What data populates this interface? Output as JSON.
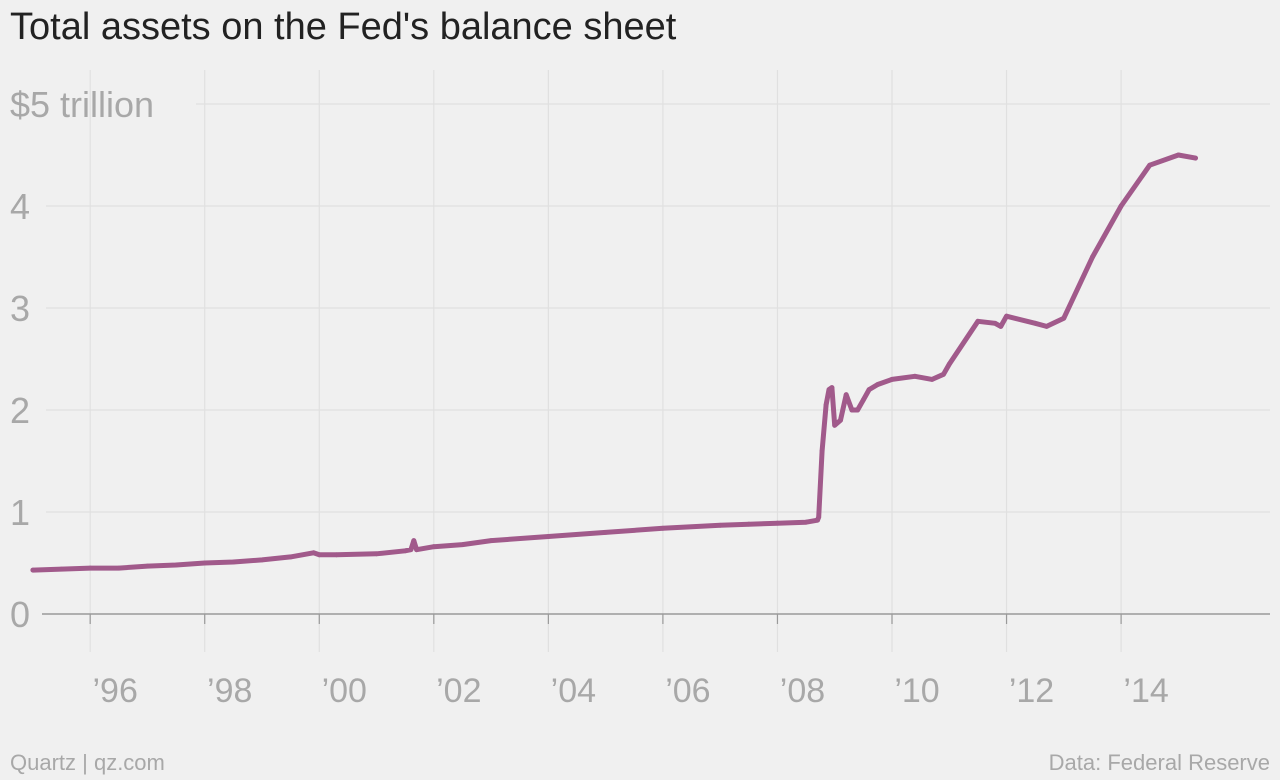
{
  "chart_data": {
    "type": "line",
    "title": "Total assets on the Fed's balance sheet",
    "xlabel": "",
    "ylabel": "",
    "x_unit": "year",
    "xlim": [
      1994.6,
      2016.6
    ],
    "ylim": [
      0,
      5
    ],
    "y_ticks": [
      0,
      1,
      2,
      3,
      4,
      5
    ],
    "y_tick_labels": [
      "0",
      "1",
      "2",
      "3",
      "4",
      "$5 trillion"
    ],
    "x_ticks": [
      1996,
      1998,
      2000,
      2002,
      2004,
      2006,
      2008,
      2010,
      2012,
      2014
    ],
    "x_tick_labels": [
      "’96",
      "’98",
      "’00",
      "’02",
      "’04",
      "’06",
      "’08",
      "’10",
      "’12",
      "’14"
    ],
    "grid": true,
    "legend": "none",
    "colors": {
      "line": "#a15a8b",
      "grid": "#e0e0e0",
      "zero_line": "#999999",
      "axis_text": "#a8a8a8",
      "title": "#222222",
      "background": "#f0f0f0"
    },
    "series": [
      {
        "x": [
          1995.0,
          1995.5,
          1996.0,
          1996.5,
          1997.0,
          1997.5,
          1998.0,
          1998.5,
          1999.0,
          1999.5,
          1999.9,
          2000.0,
          2000.3,
          2001.0,
          2001.5,
          2001.6,
          2001.65,
          2001.7,
          2002.0,
          2002.5,
          2003.0,
          2004.0,
          2005.0,
          2006.0,
          2007.0,
          2007.5,
          2008.0,
          2008.5,
          2008.7,
          2008.72,
          2008.78,
          2008.85,
          2008.9,
          2008.95,
          2009.0,
          2009.1,
          2009.2,
          2009.3,
          2009.4,
          2009.5,
          2009.6,
          2009.75,
          2010.0,
          2010.4,
          2010.7,
          2010.9,
          2011.0,
          2011.5,
          2011.8,
          2011.9,
          2012.0,
          2012.5,
          2012.7,
          2013.0,
          2013.5,
          2014.0,
          2014.5,
          2015.0,
          2015.3
        ],
        "y": [
          0.43,
          0.44,
          0.45,
          0.45,
          0.47,
          0.48,
          0.5,
          0.51,
          0.53,
          0.56,
          0.6,
          0.58,
          0.58,
          0.59,
          0.62,
          0.63,
          0.72,
          0.63,
          0.66,
          0.68,
          0.72,
          0.76,
          0.8,
          0.84,
          0.87,
          0.88,
          0.89,
          0.9,
          0.92,
          0.95,
          1.6,
          2.05,
          2.2,
          2.22,
          1.85,
          1.9,
          2.15,
          2.0,
          2.0,
          2.1,
          2.2,
          2.25,
          2.3,
          2.33,
          2.3,
          2.35,
          2.45,
          2.87,
          2.85,
          2.82,
          2.92,
          2.85,
          2.82,
          2.9,
          3.5,
          4.0,
          4.4,
          4.5,
          4.47
        ]
      }
    ]
  },
  "footer": {
    "source_left": "Quartz | qz.com",
    "source_right": "Data: Federal Reserve"
  }
}
